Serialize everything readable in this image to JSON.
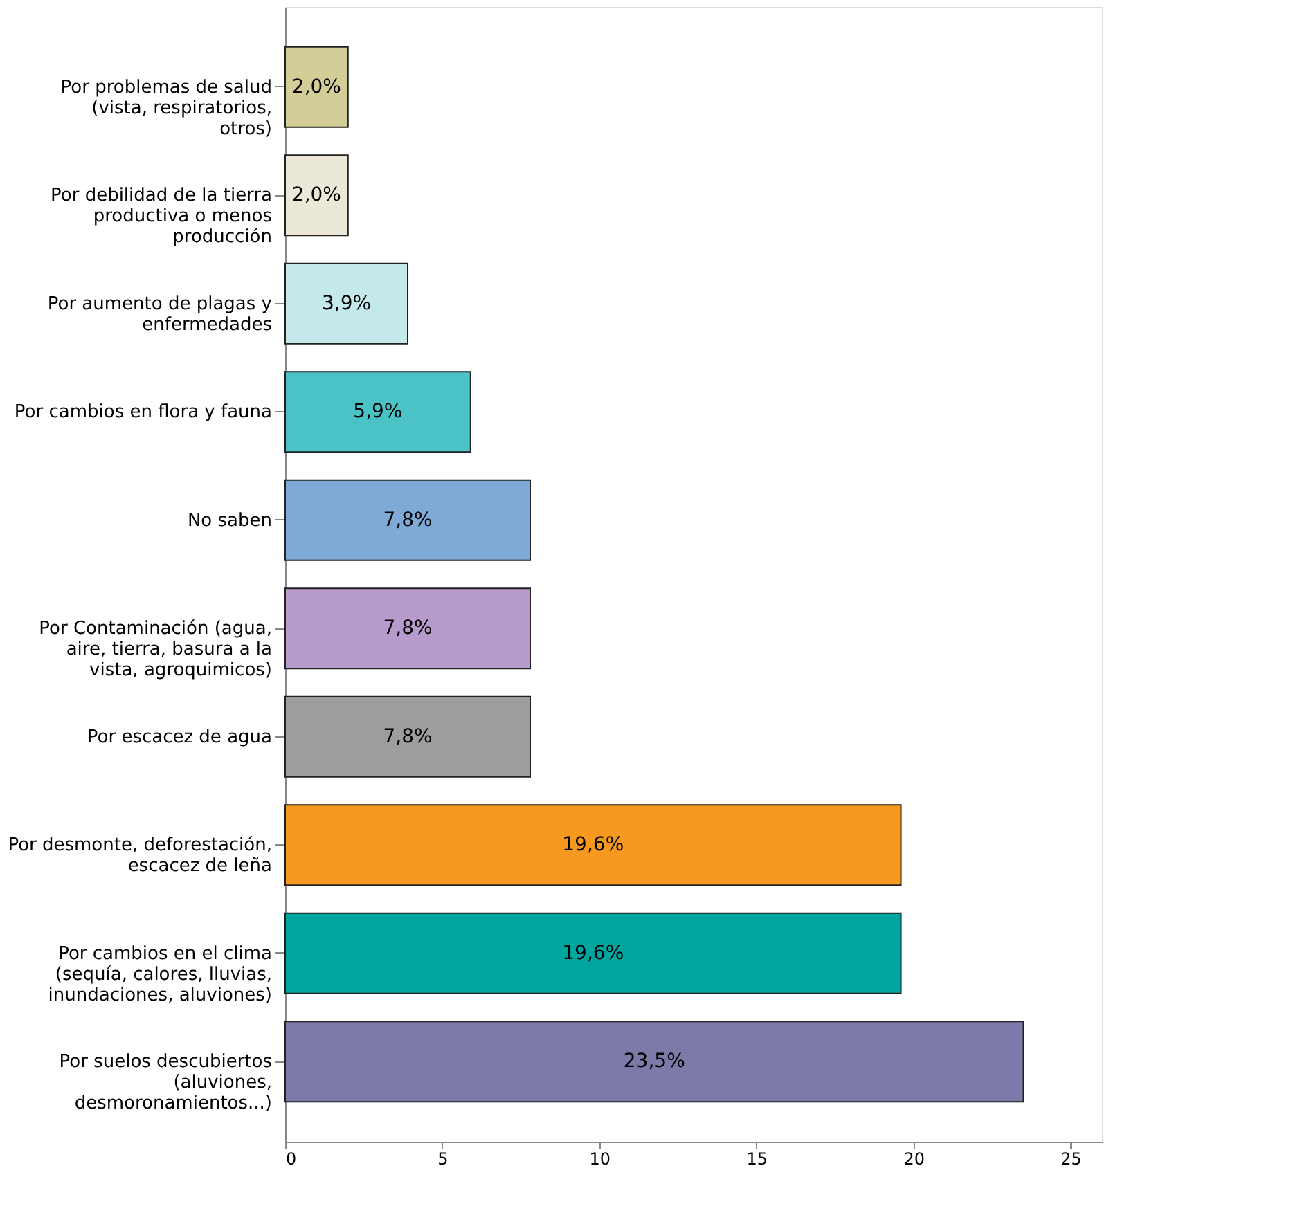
{
  "chart_data": {
    "type": "bar",
    "orientation": "horizontal",
    "categories": [
      "Por problemas de salud (vista, respiratorios, otros)",
      "Por debilidad de la tierra productiva o menos producción",
      "Por aumento de plagas y enfermedades",
      "Por cambios en flora y fauna",
      "No saben",
      "Por Contaminación (agua, aire, tierra, basura a la vista, agroquimicos)",
      "Por escacez de agua",
      "Por desmonte, deforestación, escacez de leña",
      "Por cambios en el clima (sequía, calores, lluvias, inundaciones, aluviones)",
      "Por suelos descubiertos (aluviones, desmoronamientos...)"
    ],
    "values": [
      2.0,
      2.0,
      3.9,
      5.9,
      7.8,
      7.8,
      7.8,
      19.6,
      19.6,
      23.5
    ],
    "value_labels": [
      "2,0%",
      "2,0%",
      "3,9%",
      "5,9%",
      "7,8%",
      "7,8%",
      "7,8%",
      "19,6%",
      "19,6%",
      "23,5%"
    ],
    "colors": [
      "#d3ce97",
      "#ebe8d8",
      "#c4e9eb",
      "#4bc3c6",
      "#80aad6",
      "#b79bcc",
      "#9d9d9d",
      "#f7991f",
      "#00a59f",
      "#7b7aa8"
    ],
    "xlim": [
      0,
      26
    ],
    "xticks": [
      0,
      5,
      10,
      15,
      20,
      25
    ],
    "grid": false
  }
}
